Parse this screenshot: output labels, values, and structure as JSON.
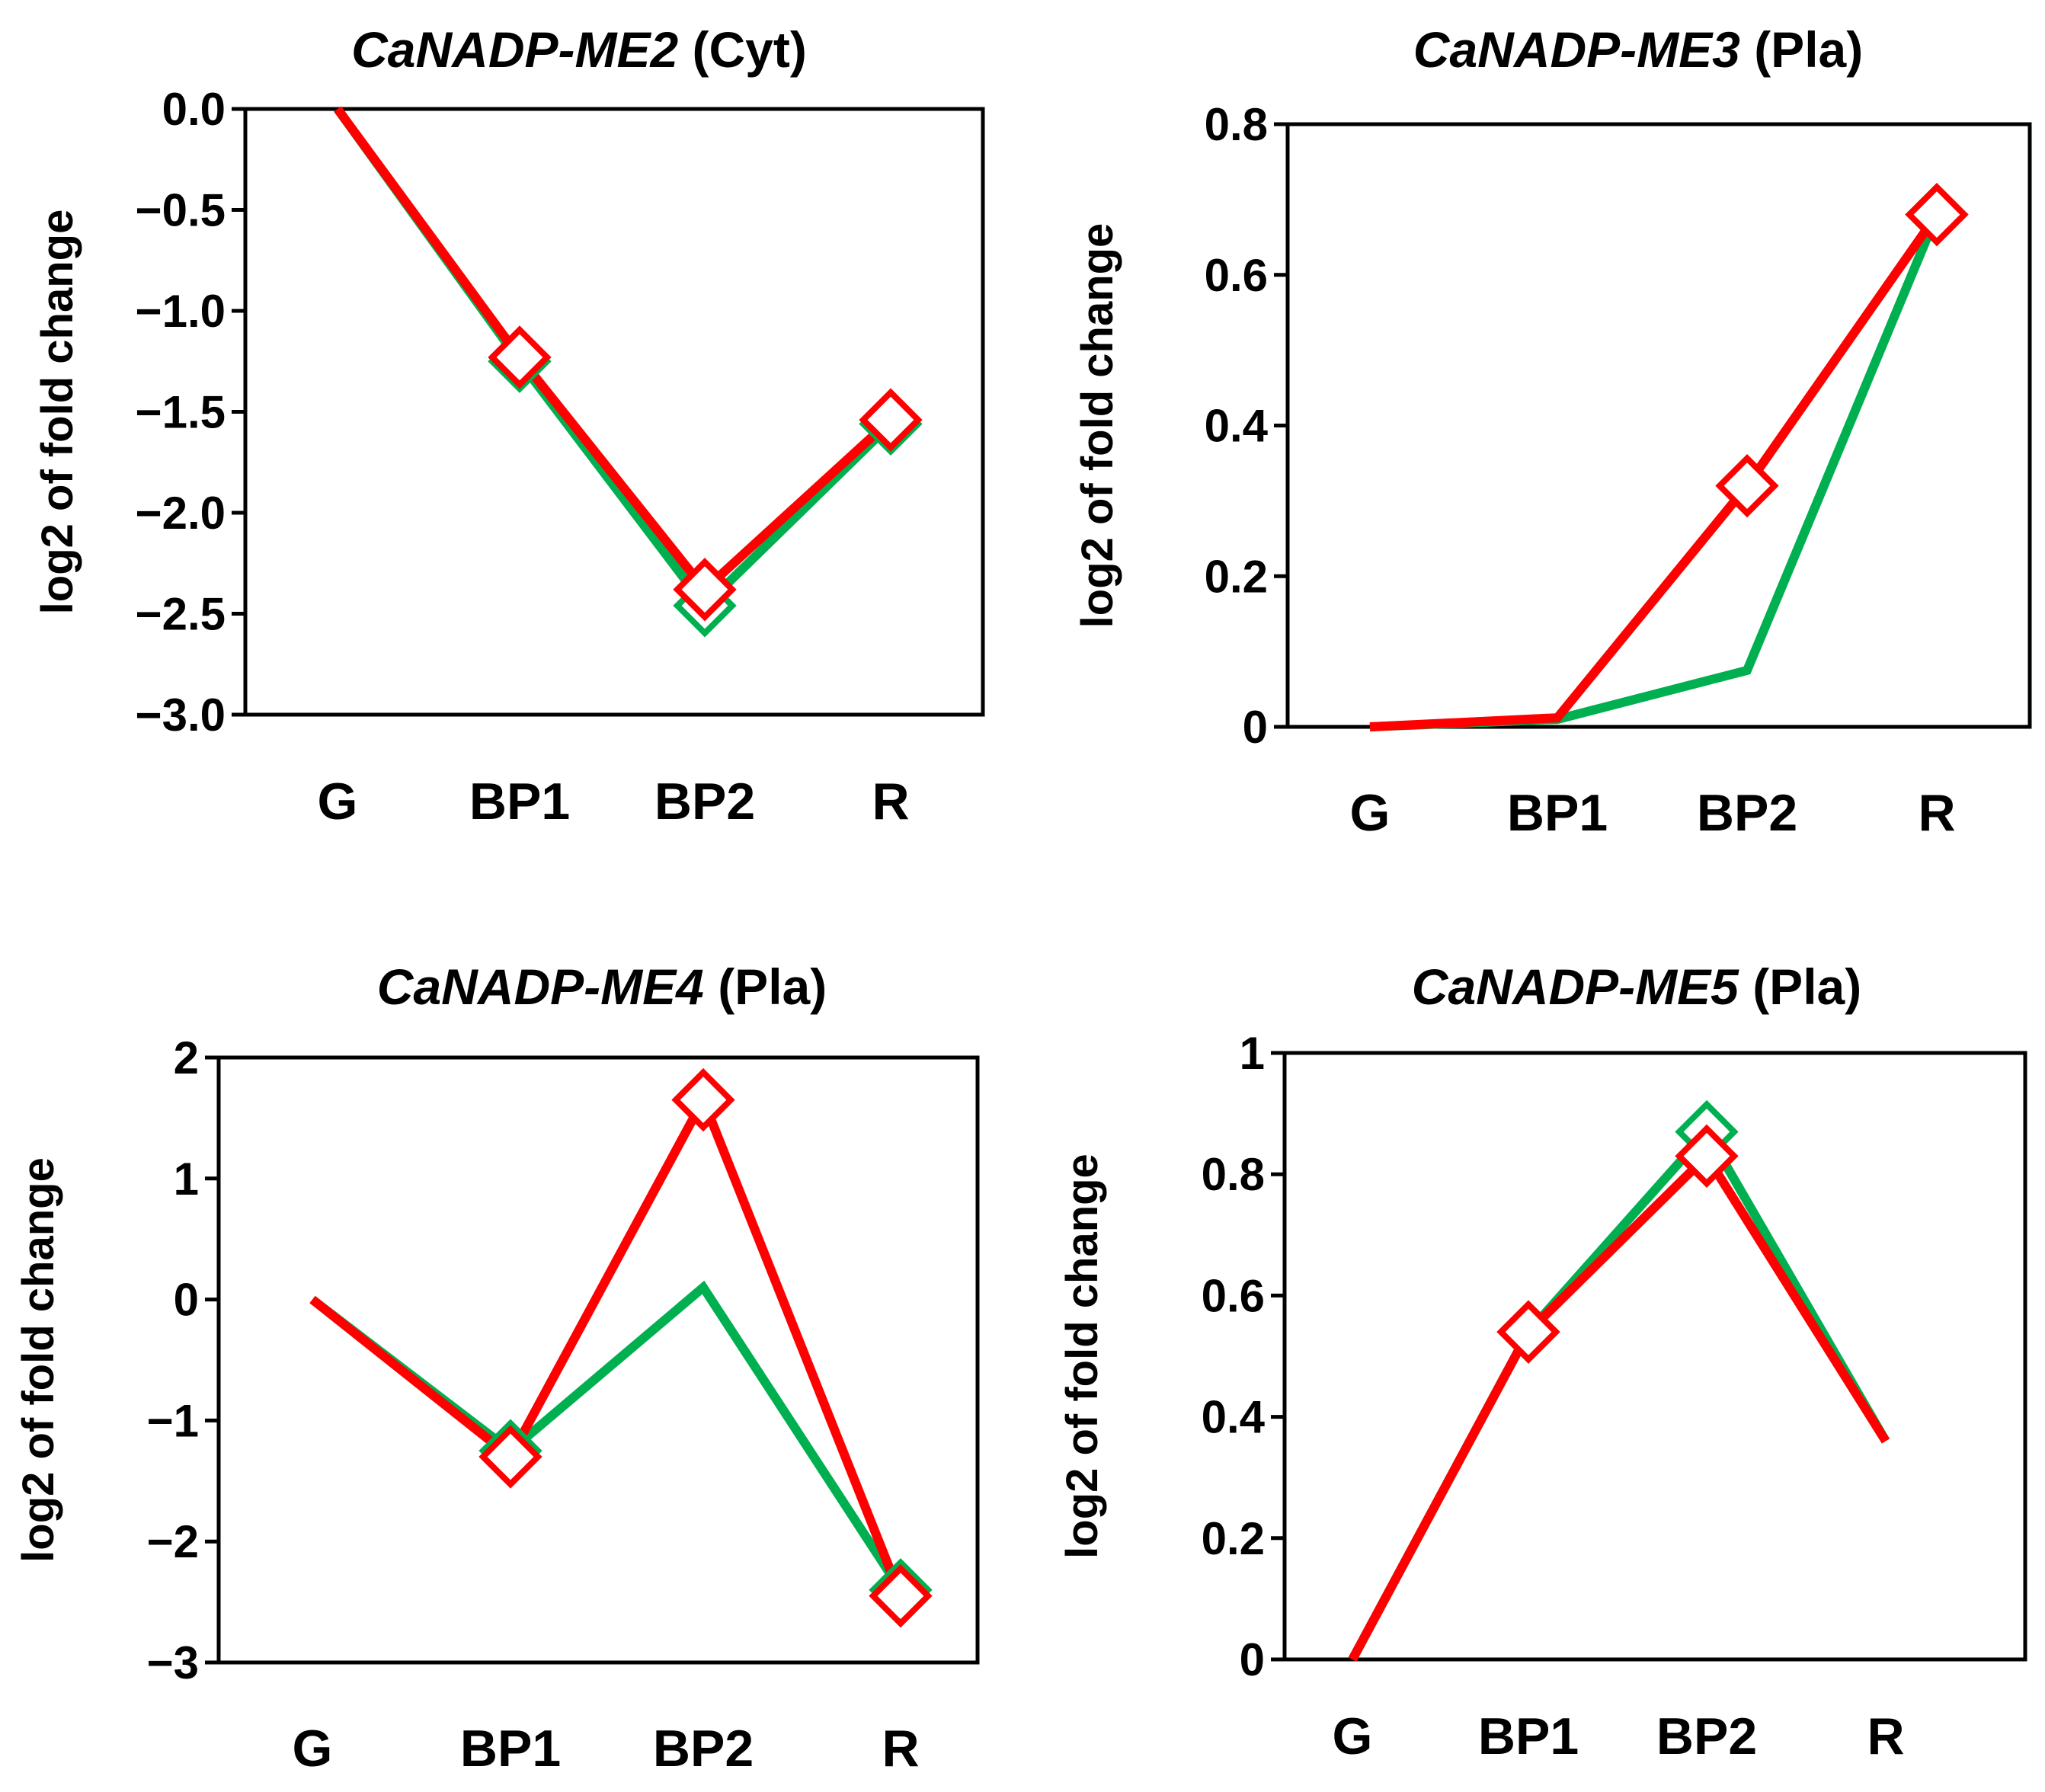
{
  "colors": {
    "green": "#00b050",
    "red": "#ff0000",
    "axis": "#000000"
  },
  "chart_data": [
    {
      "type": "line",
      "title_italic": "CaNADP-ME2",
      "title_suffix": "(Cyt)",
      "ylabel": "log2 of fold change",
      "xlabel": "",
      "categories": [
        "G",
        "BP1",
        "BP2",
        "R"
      ],
      "ylim": [
        -3.0,
        0.0
      ],
      "yticks": [
        0.0,
        -0.5,
        -1.0,
        -1.5,
        -2.0,
        -2.5,
        -3.0
      ],
      "yticklabels": [
        "0.0",
        "−0.5",
        "−1.0",
        "−1.5",
        "−2.0",
        "−2.5",
        "−3.0"
      ],
      "grid": false,
      "series": [
        {
          "name": "green",
          "color": "#00b050",
          "values": [
            0.0,
            -1.25,
            -2.46,
            -1.56
          ],
          "markers": [
            false,
            true,
            true,
            true
          ]
        },
        {
          "name": "red",
          "color": "#ff0000",
          "values": [
            0.0,
            -1.23,
            -2.38,
            -1.54
          ],
          "markers": [
            false,
            true,
            true,
            true
          ]
        }
      ]
    },
    {
      "type": "line",
      "title_italic": "CaNADP-ME3",
      "title_suffix": "(Pla)",
      "ylabel": "log2 of fold change",
      "xlabel": "",
      "categories": [
        "G",
        "BP1",
        "BP2",
        "R"
      ],
      "ylim": [
        0,
        0.8
      ],
      "yticks": [
        0.8,
        0.6,
        0.4,
        0.2,
        0
      ],
      "yticklabels": [
        "0.8",
        "0.6",
        "0.4",
        "0.2",
        "0"
      ],
      "grid": false,
      "series": [
        {
          "name": "green",
          "color": "#00b050",
          "values": [
            0.0,
            0.01,
            0.075,
            0.68
          ],
          "markers": [
            false,
            false,
            false,
            true
          ]
        },
        {
          "name": "red",
          "color": "#ff0000",
          "values": [
            0.0,
            0.012,
            0.32,
            0.68
          ],
          "markers": [
            false,
            false,
            true,
            true
          ]
        }
      ]
    },
    {
      "type": "line",
      "title_italic": "CaNADP-ME4",
      "title_suffix": "(Pla)",
      "ylabel": "log2 of fold change",
      "xlabel": "",
      "categories": [
        "G",
        "BP1",
        "BP2",
        "R"
      ],
      "ylim": [
        -3,
        2
      ],
      "yticks": [
        2,
        1,
        0,
        -1,
        -2,
        -3
      ],
      "yticklabels": [
        "2",
        "1",
        "0",
        "−1",
        "−2",
        "−3"
      ],
      "grid": false,
      "series": [
        {
          "name": "green",
          "color": "#00b050",
          "values": [
            0.0,
            -1.25,
            0.1,
            -2.4
          ],
          "markers": [
            false,
            true,
            false,
            true
          ]
        },
        {
          "name": "red",
          "color": "#ff0000",
          "values": [
            0.0,
            -1.3,
            1.65,
            -2.45
          ],
          "markers": [
            false,
            true,
            true,
            true
          ]
        }
      ]
    },
    {
      "type": "line",
      "title_italic": "CaNADP-ME5",
      "title_suffix": "(Pla)",
      "ylabel": "log2 of fold change",
      "xlabel": "",
      "categories": [
        "G",
        "BP1",
        "BP2",
        "R"
      ],
      "ylim": [
        0,
        1
      ],
      "yticks": [
        1,
        0.8,
        0.6,
        0.4,
        0.2,
        0
      ],
      "yticklabels": [
        "1",
        "0.8",
        "0.6",
        "0.4",
        "0.2",
        "0"
      ],
      "grid": false,
      "series": [
        {
          "name": "green",
          "color": "#00b050",
          "values": [
            0.0,
            0.54,
            0.87,
            0.36
          ],
          "markers": [
            false,
            true,
            true,
            false
          ]
        },
        {
          "name": "red",
          "color": "#ff0000",
          "values": [
            0.0,
            0.54,
            0.83,
            0.36
          ],
          "markers": [
            false,
            true,
            true,
            false
          ]
        }
      ]
    }
  ]
}
